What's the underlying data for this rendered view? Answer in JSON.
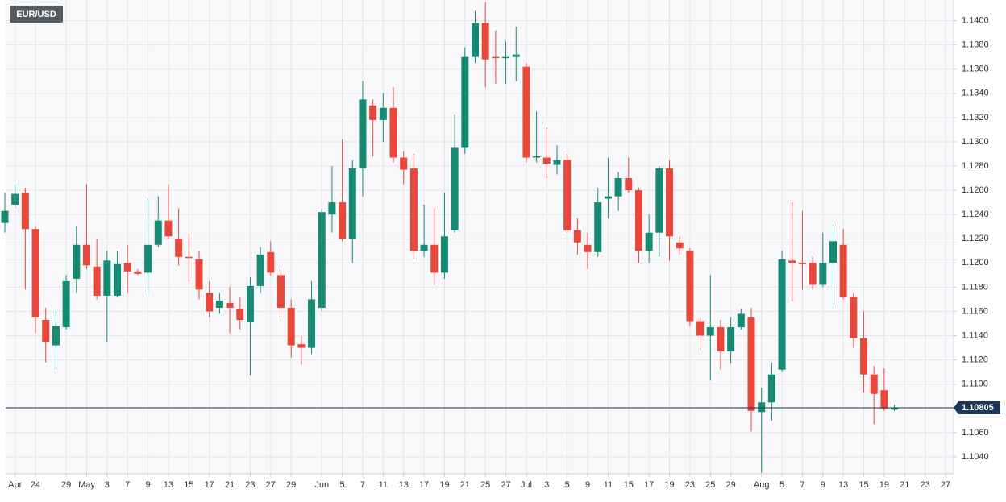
{
  "chart_data": {
    "type": "candlestick",
    "title": "EUR/USD",
    "categories": [
      null,
      "Apr",
      null,
      "24",
      null,
      null,
      "29",
      null,
      "May",
      null,
      "3",
      null,
      "7",
      null,
      "9",
      null,
      "13",
      null,
      "15",
      null,
      "17",
      null,
      "21",
      null,
      "23",
      null,
      "27",
      null,
      "29",
      null,
      null,
      "Jun",
      null,
      "5",
      null,
      "7",
      null,
      "11",
      null,
      "13",
      null,
      "17",
      null,
      "19",
      null,
      "21",
      null,
      "25",
      null,
      "27",
      null,
      "Jul",
      null,
      "3",
      null,
      "5",
      null,
      "9",
      null,
      "11",
      null,
      "15",
      null,
      "17",
      null,
      "19",
      null,
      "23",
      null,
      "25",
      null,
      "29",
      null,
      null,
      "Aug",
      null,
      "5",
      null,
      "7",
      null,
      "9",
      null,
      "13",
      null,
      "15",
      null,
      "19",
      null,
      "21",
      null,
      "23",
      null,
      "27"
    ],
    "open": [
      1.1233,
      1.1248,
      1.1258,
      1.1228,
      1.1153,
      1.1132,
      1.1147,
      1.1187,
      1.1215,
      1.1197,
      1.1173,
      1.1173,
      1.12,
      1.1193,
      1.1192,
      1.1215,
      1.1235,
      1.122,
      1.1205,
      1.1203,
      1.1175,
      1.1163,
      1.1167,
      1.1162,
      1.1151,
      1.1181,
      1.1209,
      1.119,
      1.1163,
      1.1133,
      1.113,
      1.1163,
      1.124,
      1.125,
      1.122,
      1.1278,
      1.133,
      1.1318,
      1.1328,
      1.1287,
      1.1278,
      1.121,
      1.1215,
      1.1192,
      1.1227,
      1.1295,
      1.137,
      1.1398,
      1.137,
      1.1369,
      1.137,
      1.1362,
      1.1287,
      1.1287,
      1.1281,
      1.1285,
      1.1227,
      1.1215,
      1.1209,
      1.1253,
      1.1255,
      1.127,
      1.126,
      1.121,
      1.1225,
      1.1278,
      1.1217,
      1.121,
      1.1152,
      1.114,
      1.1147,
      1.1127,
      1.1147,
      1.1155,
      1.1077,
      1.1085,
      1.1112,
      1.1202,
      1.12,
      1.12,
      1.1182,
      1.12,
      1.1215,
      1.1172,
      1.1138,
      1.1108,
      1.1095,
      1.1079,
      null,
      null,
      null,
      null,
      null
    ],
    "high": [
      1.1258,
      1.1265,
      1.1262,
      1.123,
      1.1163,
      1.116,
      1.119,
      1.123,
      1.1265,
      1.122,
      1.121,
      1.121,
      1.1215,
      1.1195,
      1.1253,
      1.1255,
      1.1265,
      1.1245,
      1.1225,
      1.121,
      1.1185,
      1.1175,
      1.118,
      1.1172,
      1.1188,
      1.1213,
      1.1218,
      1.1195,
      1.117,
      1.114,
      1.1185,
      1.1245,
      1.128,
      1.1302,
      1.1285,
      1.135,
      1.1335,
      1.134,
      1.1345,
      1.1292,
      1.129,
      1.1248,
      1.1245,
      1.1258,
      1.1322,
      1.1378,
      1.1408,
      1.1415,
      1.1392,
      1.1383,
      1.1395,
      1.1365,
      1.1325,
      1.1312,
      1.1297,
      1.129,
      1.1237,
      1.1225,
      1.1262,
      1.1287,
      1.1275,
      1.1287,
      1.1262,
      1.124,
      1.128,
      1.1285,
      1.1222,
      1.1212,
      1.1155,
      1.119,
      1.1153,
      1.1155,
      1.1162,
      1.1163,
      1.1097,
      1.1118,
      1.121,
      1.125,
      1.1243,
      1.1205,
      1.1225,
      1.1232,
      1.1228,
      1.1175,
      1.116,
      1.1115,
      1.1113,
      1.1083,
      null,
      null,
      null,
      null,
      null
    ],
    "low": [
      1.1225,
      1.1245,
      1.1178,
      1.1142,
      1.1118,
      1.1112,
      1.1145,
      1.1175,
      1.1195,
      1.117,
      1.1135,
      1.1172,
      1.1175,
      1.119,
      1.1175,
      1.1213,
      1.122,
      1.1198,
      1.1185,
      1.117,
      1.1155,
      1.1158,
      1.1142,
      1.1145,
      1.1107,
      1.1175,
      1.119,
      1.1155,
      1.1122,
      1.1116,
      1.1125,
      1.116,
      1.1225,
      1.1218,
      1.12,
      1.1255,
      1.1288,
      1.13,
      1.1283,
      1.1265,
      1.1203,
      1.1205,
      1.1182,
      1.1187,
      1.1225,
      1.129,
      1.1365,
      1.1345,
      1.1348,
      1.1348,
      1.135,
      1.1283,
      1.1283,
      1.127,
      1.1273,
      1.1225,
      1.1207,
      1.1195,
      1.1205,
      1.1237,
      1.1243,
      1.1258,
      1.12,
      1.12,
      1.1205,
      1.1202,
      1.1207,
      1.1148,
      1.1128,
      1.1103,
      1.1112,
      1.1117,
      1.1145,
      1.1061,
      1.1027,
      1.107,
      1.111,
      1.1168,
      1.1178,
      1.1178,
      1.118,
      1.1163,
      1.117,
      1.113,
      1.1093,
      1.1067,
      1.1078,
      1.1078,
      null,
      null,
      null,
      null,
      null
    ],
    "close": [
      1.1243,
      1.1257,
      1.1228,
      1.1155,
      1.1135,
      1.1148,
      1.1185,
      1.1215,
      1.1198,
      1.1173,
      1.1202,
      1.1199,
      1.1193,
      1.1191,
      1.1215,
      1.1235,
      1.1222,
      1.1205,
      1.1204,
      1.1178,
      1.116,
      1.1169,
      1.1163,
      1.1153,
      1.1181,
      1.1207,
      1.1192,
      1.1163,
      1.1132,
      1.113,
      1.117,
      1.1242,
      1.125,
      1.122,
      1.1278,
      1.1335,
      1.1318,
      1.1328,
      1.1287,
      1.1277,
      1.121,
      1.1215,
      1.1192,
      1.1222,
      1.1295,
      1.137,
      1.1398,
      1.1368,
      1.1369,
      1.137,
      1.1372,
      1.1287,
      1.1288,
      1.1282,
      1.1285,
      1.1227,
      1.1217,
      1.1209,
      1.125,
      1.1255,
      1.127,
      1.126,
      1.121,
      1.1225,
      1.1278,
      1.1222,
      1.1212,
      1.1152,
      1.114,
      1.1147,
      1.1127,
      1.1147,
      1.1158,
      1.1078,
      1.1085,
      1.1108,
      1.1203,
      1.12,
      1.1199,
      1.1182,
      1.12,
      1.1218,
      1.1172,
      1.1138,
      1.1108,
      1.1092,
      1.108,
      1.10805,
      null,
      null,
      null,
      null,
      null
    ],
    "up_color": "#168a73",
    "down_color": "#e8483b",
    "last_price": 1.10805,
    "last_price_color": "#1c3657",
    "ylim": [
      1.1026,
      1.1417
    ],
    "yticks": [
      {
        "value": 1.104,
        "label": "1.1040"
      },
      {
        "value": 1.106,
        "label": "1.1060"
      },
      {
        "value": 1.108,
        "label": "1.1080"
      },
      {
        "value": 1.11,
        "label": "1.1100"
      },
      {
        "value": 1.112,
        "label": "1.1120"
      },
      {
        "value": 1.114,
        "label": "1.1140"
      },
      {
        "value": 1.116,
        "label": "1.1160"
      },
      {
        "value": 1.118,
        "label": "1.1180"
      },
      {
        "value": 1.12,
        "label": "1.1200"
      },
      {
        "value": 1.122,
        "label": "1.1220"
      },
      {
        "value": 1.124,
        "label": "1.1240"
      },
      {
        "value": 1.126,
        "label": "1.1260"
      },
      {
        "value": 1.128,
        "label": "1.1280"
      },
      {
        "value": 1.13,
        "label": "1.1300"
      },
      {
        "value": 1.132,
        "label": "1.1320"
      },
      {
        "value": 1.134,
        "label": "1.1340"
      },
      {
        "value": 1.136,
        "label": "1.1360"
      },
      {
        "value": 1.138,
        "label": "1.1380"
      },
      {
        "value": 1.14,
        "label": "1.1400"
      }
    ],
    "grid": true
  }
}
